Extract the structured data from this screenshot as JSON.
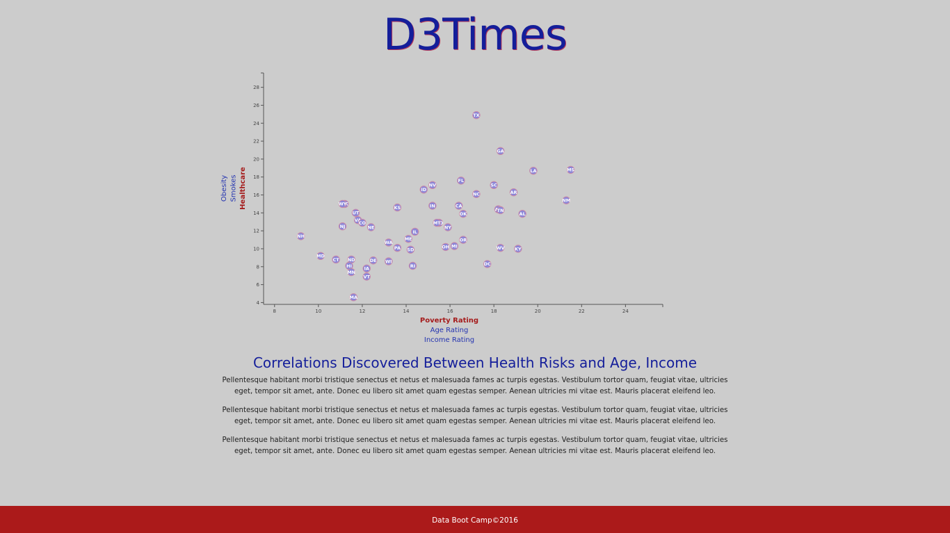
{
  "header": {
    "title": "D3Times"
  },
  "chart_data": {
    "type": "scatter",
    "x_axis": {
      "labels": [
        {
          "text": "Poverty Rating",
          "active": true
        },
        {
          "text": "Age Rating",
          "active": false
        },
        {
          "text": "Income Rating",
          "active": false
        }
      ],
      "range": [
        7.5,
        25.7
      ],
      "ticks": [
        "8",
        "10",
        "12",
        "14",
        "16",
        "18",
        "20",
        "22",
        "24"
      ]
    },
    "y_axis": {
      "labels": [
        {
          "text": "Healthcare",
          "active": true
        },
        {
          "text": "Smokes",
          "active": false
        },
        {
          "text": "Obesity",
          "active": false
        }
      ],
      "range": [
        3.8,
        29.6
      ],
      "ticks": [
        "4",
        "6",
        "8",
        "10",
        "12",
        "14",
        "16",
        "18",
        "20",
        "22",
        "24",
        "26",
        "28"
      ]
    },
    "points": [
      {
        "abbr": "TX",
        "x": 17.2,
        "y": 24.9
      },
      {
        "abbr": "GA",
        "x": 18.3,
        "y": 20.9
      },
      {
        "abbr": "LA",
        "x": 19.8,
        "y": 18.7
      },
      {
        "abbr": "MS",
        "x": 21.5,
        "y": 18.8
      },
      {
        "abbr": "FL",
        "x": 16.5,
        "y": 17.6
      },
      {
        "abbr": "NV",
        "x": 15.2,
        "y": 17.1
      },
      {
        "abbr": "SC",
        "x": 18.0,
        "y": 17.1
      },
      {
        "abbr": "ID",
        "x": 14.8,
        "y": 16.6
      },
      {
        "abbr": "AR",
        "x": 18.9,
        "y": 16.3
      },
      {
        "abbr": "NC",
        "x": 17.2,
        "y": 16.1
      },
      {
        "abbr": "NM",
        "x": 21.3,
        "y": 15.4
      },
      {
        "abbr": "AK",
        "x": 11.2,
        "y": 15.0
      },
      {
        "abbr": "WY",
        "x": 11.1,
        "y": 15.0
      },
      {
        "abbr": "IN",
        "x": 15.2,
        "y": 14.8
      },
      {
        "abbr": "CA",
        "x": 16.4,
        "y": 14.8
      },
      {
        "abbr": "KS",
        "x": 13.6,
        "y": 14.6
      },
      {
        "abbr": "AZ",
        "x": 18.2,
        "y": 14.4
      },
      {
        "abbr": "TN",
        "x": 18.3,
        "y": 14.3
      },
      {
        "abbr": "UT",
        "x": 11.7,
        "y": 14.0
      },
      {
        "abbr": "AL",
        "x": 19.3,
        "y": 13.9
      },
      {
        "abbr": "OK",
        "x": 16.6,
        "y": 13.9
      },
      {
        "abbr": "VA",
        "x": 11.8,
        "y": 13.2
      },
      {
        "abbr": "CO",
        "x": 12.0,
        "y": 12.9
      },
      {
        "abbr": "MO",
        "x": 15.5,
        "y": 12.9
      },
      {
        "abbr": "MT",
        "x": 15.4,
        "y": 12.9
      },
      {
        "abbr": "NJ",
        "x": 11.1,
        "y": 12.5
      },
      {
        "abbr": "NE",
        "x": 12.4,
        "y": 12.4
      },
      {
        "abbr": "NY",
        "x": 15.9,
        "y": 12.4
      },
      {
        "abbr": "IL",
        "x": 14.4,
        "y": 11.9
      },
      {
        "abbr": "NH",
        "x": 9.2,
        "y": 11.4
      },
      {
        "abbr": "ME",
        "x": 14.1,
        "y": 11.1
      },
      {
        "abbr": "OR",
        "x": 16.6,
        "y": 11.0
      },
      {
        "abbr": "WA",
        "x": 13.2,
        "y": 10.7
      },
      {
        "abbr": "MI",
        "x": 16.2,
        "y": 10.3
      },
      {
        "abbr": "OH",
        "x": 15.8,
        "y": 10.2
      },
      {
        "abbr": "WV",
        "x": 18.3,
        "y": 10.1
      },
      {
        "abbr": "KY",
        "x": 19.1,
        "y": 10.0
      },
      {
        "abbr": "PA",
        "x": 13.6,
        "y": 10.1
      },
      {
        "abbr": "SD",
        "x": 14.2,
        "y": 9.9
      },
      {
        "abbr": "MD",
        "x": 10.1,
        "y": 9.2
      },
      {
        "abbr": "CT",
        "x": 10.8,
        "y": 8.8
      },
      {
        "abbr": "ND",
        "x": 11.5,
        "y": 8.8
      },
      {
        "abbr": "DE",
        "x": 12.5,
        "y": 8.7
      },
      {
        "abbr": "WI",
        "x": 13.2,
        "y": 8.6
      },
      {
        "abbr": "DC",
        "x": 17.7,
        "y": 8.3
      },
      {
        "abbr": "HI",
        "x": 11.4,
        "y": 8.1
      },
      {
        "abbr": "RI",
        "x": 14.3,
        "y": 8.1
      },
      {
        "abbr": "IA",
        "x": 12.2,
        "y": 7.8
      },
      {
        "abbr": "MN",
        "x": 11.5,
        "y": 7.4
      },
      {
        "abbr": "VT",
        "x": 12.2,
        "y": 6.9
      },
      {
        "abbr": "MA",
        "x": 11.6,
        "y": 4.6
      }
    ],
    "colors": {
      "marker": "#8a86d8",
      "active_label": "#a51c1c",
      "inactive_label": "#2434b0"
    }
  },
  "article": {
    "heading": "Correlations Discovered Between Health Risks and Age, Income",
    "paragraphs": [
      "Pellentesque habitant morbi tristique senectus et netus et malesuada fames ac turpis egestas. Vestibulum tortor quam, feugiat vitae, ultricies eget, tempor sit amet, ante. Donec eu libero sit amet quam egestas semper. Aenean ultricies mi vitae est. Mauris placerat eleifend leo.",
      "Pellentesque habitant morbi tristique senectus et netus et malesuada fames ac turpis egestas. Vestibulum tortor quam, feugiat vitae, ultricies eget, tempor sit amet, ante. Donec eu libero sit amet quam egestas semper. Aenean ultricies mi vitae est. Mauris placerat eleifend leo.",
      "Pellentesque habitant morbi tristique senectus et netus et malesuada fames ac turpis egestas. Vestibulum tortor quam, feugiat vitae, ultricies eget, tempor sit amet, ante. Donec eu libero sit amet quam egestas semper. Aenean ultricies mi vitae est. Mauris placerat eleifend leo."
    ]
  },
  "footer": {
    "text": "Data Boot Camp©2016"
  }
}
